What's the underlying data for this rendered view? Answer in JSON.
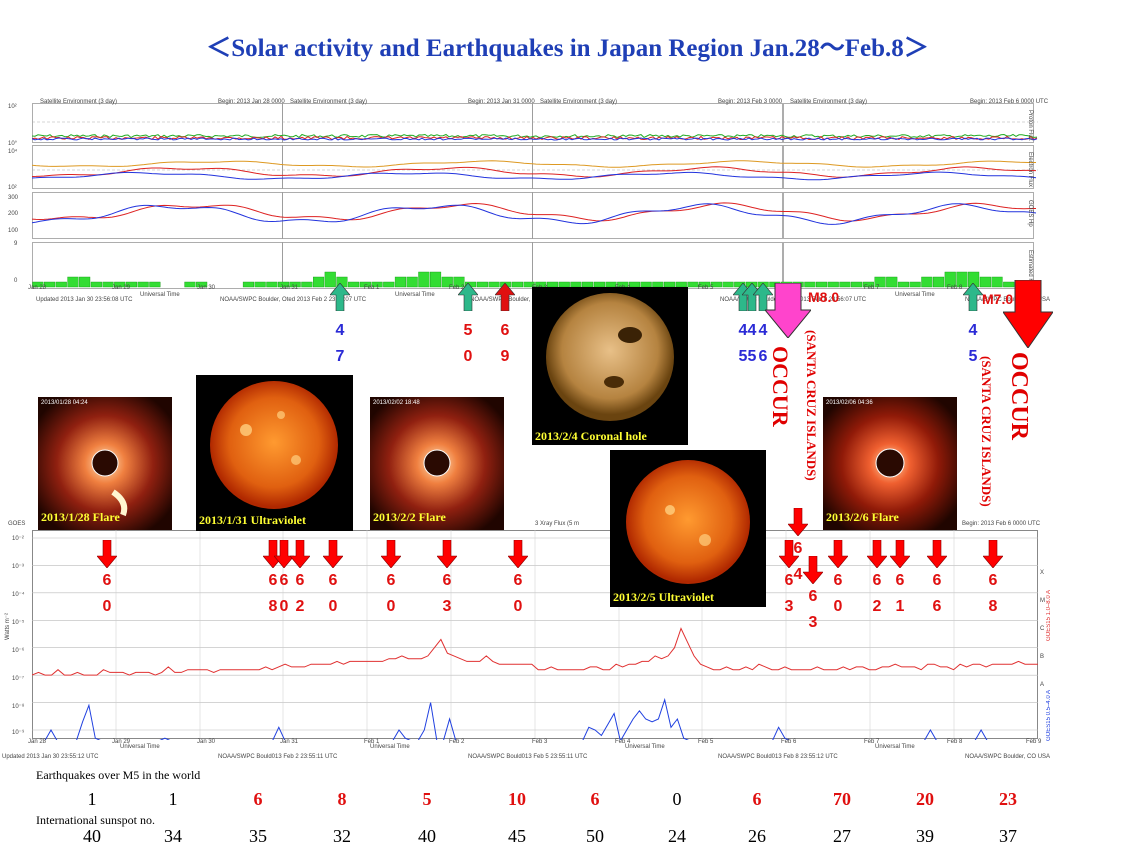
{
  "title": "＜Solar activity and Earthquakes  in Japan Region Jan.28～Feb.8＞",
  "top_chart": {
    "panel_header": "Satellite Environment (3 day)",
    "begin_labels": [
      "Begin:  2013 Jan 28 0000",
      "Begin:  2013 Jan 31 0000",
      "Begin:  2013 Feb 3 0000",
      "Begin:  2013 Feb 6 0000  UTC"
    ],
    "right_axis_labels": [
      "Proton Flux",
      "Electron Flux",
      "GOES Hp",
      "Estimated Kp"
    ],
    "left_ticks": [
      "10²",
      "10°",
      "10⁴",
      "10²",
      "300",
      "200",
      "100",
      "9",
      "0"
    ],
    "dates": [
      "Jan 28",
      "Jan 29",
      "Jan 30",
      "Jan 31",
      "Feb 1",
      "Feb 2",
      "Feb 3",
      "Feb 4",
      "Feb 5",
      "Feb 6",
      "Feb 7",
      "Feb 8",
      "Feb 9"
    ],
    "universal_time": "Universal Time",
    "footer": [
      "Updated 2013 Jan 30 23:56:08 UTC",
      "NOAA/SWPC Boulder, Oted 2013 Feb  2 23:56:07 UTC",
      "NOAA/SWPC Boulder, Oted 2013 Feb  5 23:56:07 UTC",
      "NOAA/SWPC Boulder, Oted 2013 Feb  8 23:56:07 UTC",
      "NOAA/SWPC Boulder, CO USA"
    ]
  },
  "bottom_chart": {
    "title_fragment": "GOES",
    "xray_fragment": "3 Xray Flux (5 m",
    "begin_label": "Begin:  2013 Feb 6 0000  UTC",
    "ylabel": "Watts m⁻²",
    "y_ticks": [
      "10⁻²",
      "10⁻³",
      "10⁻⁴",
      "10⁻⁵",
      "10⁻⁶",
      "10⁻⁷",
      "10⁻⁸",
      "10⁻⁹"
    ],
    "class_letters": [
      "X",
      "M",
      "C",
      "B",
      "A"
    ],
    "right_labels": [
      "GOES15 1.0–8.0 A",
      "GOES15 0.5–4.0 A"
    ],
    "dates": [
      "Jan 28",
      "Jan 29",
      "Jan 30",
      "Jan 31",
      "Feb 1",
      "Feb 2",
      "Feb 3",
      "Feb 4",
      "Feb 5",
      "Feb 6",
      "Feb 7",
      "Feb 8",
      "Feb 9"
    ],
    "universal_time": "Universal Time",
    "footer": [
      "Updated 2013 Jan 30 23:55:12 UTC",
      "NOAA/SWPC Bould013 Feb  2 23:55:11 UTC",
      "NOAA/SWPC Bould013 Feb  5 23:55:11 UTC",
      "NOAA/SWPC Bould013 Feb  8 23:55:12 UTC",
      "NOAA/SWPC Boulder, CO USA"
    ]
  },
  "images": [
    {
      "label": "2013/1/28 Flare",
      "kind": "coronagraph",
      "stamp": "2013/01/28 04:24"
    },
    {
      "label": "2013/1/31 Ultraviolet",
      "kind": "sun_uv"
    },
    {
      "label": "2013/2/2 Flare",
      "kind": "coronagraph",
      "stamp": "2013/02/02 18:48"
    },
    {
      "label": "2013/2/4 Coronal  hole",
      "kind": "sun_coronal"
    },
    {
      "label": "2013/2/5 Ultraviolet",
      "kind": "sun_uv"
    },
    {
      "label": "2013/2/6 Flare",
      "kind": "coronagraph",
      "stamp": "2013/02/06 04:36"
    }
  ],
  "upper_markers": [
    {
      "color": "#2db88a",
      "digits": [
        "4",
        "7"
      ],
      "digit_color": "#2a2ad6"
    },
    {
      "color": "#2db88a",
      "digits": [
        "5",
        "0"
      ],
      "digit_color": "#e01010"
    },
    {
      "color": "#e01010",
      "digits": [
        "6",
        "9"
      ],
      "digit_color": "#e01010"
    },
    {
      "color": "#2db88a",
      "digits": [
        "4",
        "5"
      ],
      "digit_color": "#2a2ad6"
    },
    {
      "color": "#2db88a",
      "digits": [
        "4",
        "5"
      ],
      "digit_color": "#2a2ad6"
    },
    {
      "color": "#2db88a",
      "digits": [
        "4",
        "6"
      ],
      "digit_color": "#2a2ad6"
    },
    {
      "color": "#2db88a",
      "digits": [
        "4",
        "5"
      ],
      "digit_color": "#2a2ad6"
    }
  ],
  "big_events": [
    {
      "color": "#ff44cc",
      "mag": "M8.0",
      "place": "(SANTA CRUZ ISLANDS)",
      "word": "OCCUR"
    },
    {
      "color": "#ff0000",
      "mag": "M7.0",
      "place": "(SANTA CRUZ ISLANDS)",
      "word": "OCCUR"
    }
  ],
  "lower_markers": [
    {
      "digits": [
        "6",
        "0"
      ]
    },
    {
      "digits": [
        "6",
        "8"
      ]
    },
    {
      "digits": [
        "6",
        "0"
      ]
    },
    {
      "digits": [
        "6",
        "2"
      ]
    },
    {
      "digits": [
        "6",
        "0"
      ]
    },
    {
      "digits": [
        "6",
        "0"
      ]
    },
    {
      "digits": [
        "6",
        "3"
      ]
    },
    {
      "digits": [
        "6",
        "0"
      ]
    },
    {
      "digits": [
        "6",
        "3"
      ]
    },
    {
      "digits": [
        "6",
        "4"
      ]
    },
    {
      "digits": [
        "6",
        "3"
      ]
    },
    {
      "digits": [
        "6",
        "0"
      ]
    },
    {
      "digits": [
        "6",
        "2"
      ]
    },
    {
      "digits": [
        "6",
        "1"
      ]
    },
    {
      "digits": [
        "6",
        "6"
      ]
    },
    {
      "digits": [
        "6",
        "8"
      ]
    }
  ],
  "stats": {
    "quake_label": "Earthquakes over M5 in the world",
    "sunspot_label": "International sunspot no.",
    "quakes": [
      {
        "value": "1",
        "color": "#000000"
      },
      {
        "value": "1",
        "color": "#000000"
      },
      {
        "value": "6",
        "color": "#e01010"
      },
      {
        "value": "8",
        "color": "#e01010"
      },
      {
        "value": "5",
        "color": "#e01010"
      },
      {
        "value": "10",
        "color": "#e01010"
      },
      {
        "value": "6",
        "color": "#e01010"
      },
      {
        "value": "0",
        "color": "#000000"
      },
      {
        "value": "6",
        "color": "#e01010"
      },
      {
        "value": "70",
        "color": "#e01010"
      },
      {
        "value": "20",
        "color": "#e01010"
      },
      {
        "value": "23",
        "color": "#e01010"
      }
    ],
    "sunspots": [
      "40",
      "34",
      "35",
      "32",
      "40",
      "45",
      "50",
      "24",
      "26",
      "27",
      "39",
      "37"
    ]
  },
  "chart_data": {
    "type": "table",
    "title": "＜Solar activity and Earthquakes  in Japan Region Jan.28～Feb.8＞",
    "columns": [
      "Jan 28",
      "Jan 29",
      "Jan 30",
      "Jan 31",
      "Feb 1",
      "Feb 2",
      "Feb 3",
      "Feb 4",
      "Feb 5",
      "Feb 6",
      "Feb 7",
      "Feb 8"
    ],
    "series": [
      {
        "name": "Earthquakes over M5 in the world",
        "values": [
          1,
          1,
          6,
          8,
          5,
          10,
          6,
          0,
          6,
          70,
          20,
          23
        ]
      },
      {
        "name": "International sunspot no.",
        "values": [
          40,
          34,
          35,
          32,
          40,
          45,
          50,
          24,
          26,
          27,
          39,
          37
        ]
      }
    ],
    "kp_bars": [
      1,
      1,
      1,
      2,
      2,
      1,
      1,
      1,
      1,
      1,
      1,
      0,
      0,
      1,
      1,
      0,
      0,
      0,
      1,
      1,
      1,
      1,
      1,
      1,
      2,
      3,
      2,
      1,
      1,
      1,
      1,
      2,
      2,
      3,
      3,
      2,
      2,
      1,
      1,
      1,
      1,
      1,
      1,
      1,
      1,
      1,
      1,
      1,
      1,
      1,
      1,
      1,
      1,
      1,
      1,
      1,
      1,
      1,
      1,
      1,
      1,
      1,
      1,
      1,
      1,
      1,
      1,
      1,
      1,
      1,
      1,
      1,
      2,
      2,
      1,
      1,
      2,
      2,
      3,
      3,
      3,
      2,
      2,
      1,
      1,
      1
    ],
    "xray_long_log": [
      -7.0,
      -6.9,
      -7.0,
      -7.0,
      -6.8,
      -7.0,
      -7.0,
      -6.9,
      -7.0,
      -7.0,
      -7.0,
      -6.8,
      -6.9,
      -6.9,
      -6.9,
      -7.0,
      -6.9,
      -6.9,
      -6.9,
      -7.0,
      -6.9,
      -6.7,
      -6.9,
      -6.9,
      -6.8,
      -6.8,
      -6.8,
      -6.8,
      -6.9,
      -6.8,
      -6.8,
      -6.8,
      -6.8,
      -6.8,
      -6.8,
      -6.8,
      -6.7,
      -6.8,
      -6.7,
      -6.6,
      -6.7,
      -6.7,
      -6.7,
      -6.6,
      -6.6,
      -6.6,
      -6.6,
      -6.5,
      -6.6,
      -6.5,
      -6.5,
      -6.5,
      -6.5,
      -6.5,
      -6.5,
      -6.4,
      -6.4,
      -6.3,
      -6.4,
      -6.4,
      -6.4,
      -6.3,
      -6.0,
      -5.7,
      -6.2,
      -6.3,
      -6.4,
      -6.5,
      -6.5,
      -6.5,
      -6.3,
      -6.5,
      -6.6,
      -6.6,
      -6.6,
      -6.6,
      -6.6,
      -6.6,
      -6.8,
      -6.8,
      -6.7,
      -6.8,
      -6.8,
      -6.8,
      -6.8,
      -6.8,
      -6.7,
      -6.7,
      -6.8,
      -6.8,
      -6.6,
      -6.7,
      -6.6,
      -6.6,
      -6.5,
      -6.5,
      -6.3,
      -6.4,
      -6.3,
      -6.0,
      -5.3,
      -5.8,
      -6.3,
      -6.6,
      -6.7,
      -6.8,
      -6.8,
      -6.7,
      -6.8,
      -6.8,
      -6.7,
      -6.8,
      -6.6,
      -6.7,
      -6.8,
      -6.8,
      -6.7,
      -6.8,
      -6.8,
      -6.8,
      -6.8,
      -6.7,
      -6.8,
      -6.8,
      -6.8,
      -6.7,
      -6.8,
      -6.7,
      -6.7,
      -6.8,
      -6.8,
      -6.7,
      -6.7,
      -6.6,
      -6.7,
      -6.7,
      -6.7,
      -6.8,
      -6.6,
      -6.6,
      -6.7,
      -6.7,
      -6.8,
      -6.6,
      -6.7,
      -6.6,
      -6.6,
      -6.7,
      -6.6,
      -6.6,
      -6.6,
      -6.6,
      -6.5,
      -6.6,
      -6.6,
      -6.6
    ],
    "xray_short_log": [
      -9.4,
      -9.4,
      -9.4,
      -9.0,
      -9.4,
      -9.4,
      -9.4,
      -9.4,
      -8.7,
      -8.1,
      -9.3,
      -9.4,
      -9.4,
      -9.4,
      -9.4,
      -9.4,
      -9.4,
      -9.4,
      -9.4,
      -9.4,
      -9.4,
      -9.3,
      -9.4,
      -9.4,
      -9.4,
      -9.4,
      -9.4,
      -9.4,
      -9.4,
      -9.4,
      -9.4,
      -9.4,
      -9.4,
      -9.4,
      -9.4,
      -9.4,
      -9.4,
      -9.4,
      -9.4,
      -8.9,
      -9.4,
      -9.4,
      -9.4,
      -9.4,
      -9.4,
      -9.4,
      -9.4,
      -9.4,
      -9.4,
      -9.4,
      -9.4,
      -9.4,
      -9.4,
      -9.4,
      -9.4,
      -9.4,
      -9.4,
      -9.4,
      -9.0,
      -9.3,
      -9.4,
      -9.4,
      -9.0,
      -8.0,
      -9.4,
      -9.4,
      -8.6,
      -9.4,
      -9.4,
      -9.4,
      -9.4,
      -9.4,
      -9.4,
      -9.4,
      -9.4,
      -9.4,
      -9.4,
      -9.4,
      -9.4,
      -9.4,
      -9.4,
      -9.4,
      -9.4,
      -9.4,
      -9.4,
      -9.4,
      -9.4,
      -9.4,
      -8.9,
      -9.0,
      -9.2,
      -8.8,
      -8.4,
      -9.4,
      -9.0,
      -8.6,
      -8.3,
      -8.6,
      -8.7,
      -8.6,
      -7.9,
      -8.9,
      -8.6,
      -9.3,
      -9.4,
      -9.4,
      -9.4,
      -9.4,
      -9.4,
      -9.4,
      -9.4,
      -9.4,
      -9.4,
      -9.4,
      -9.4,
      -9.4,
      -9.4,
      -9.4,
      -8.9,
      -9.3,
      -9.4,
      -9.4,
      -9.4,
      -9.4,
      -9.4,
      -9.4,
      -9.4,
      -9.4,
      -9.4,
      -9.4,
      -9.4,
      -9.4,
      -9.4,
      -9.4,
      -9.4,
      -9.4,
      -9.4,
      -9.4,
      -9.4,
      -9.4,
      -9.4,
      -9.4,
      -9.0,
      -9.4,
      -9.4,
      -9.4,
      -9.4,
      -9.4,
      -9.4,
      -9.4,
      -9.0,
      -9.4,
      -9.4,
      -9.4,
      -9.4,
      -9.4,
      -9.4,
      -9.4,
      -9.4,
      -9.4
    ]
  }
}
